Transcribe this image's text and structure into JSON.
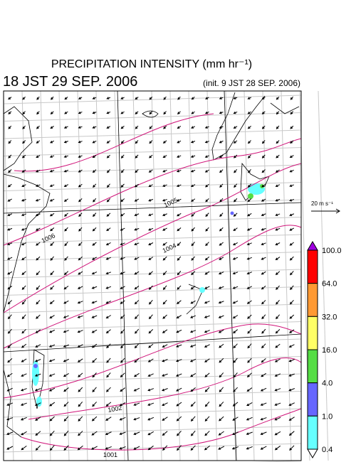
{
  "header": {
    "title": "PRECIPITATION INTENSITY (mm hr⁻¹)",
    "valid_time": "18 JST 29 SEP. 2006",
    "init_time": "(init. 9 JST 28 SEP. 2006)"
  },
  "wind_scale": {
    "label": "20 m s⁻¹"
  },
  "color_bar": {
    "levels": [
      "100.0",
      "64.0",
      "32.0",
      "16.0",
      "4.0",
      "1.0",
      "0.4"
    ],
    "colors": [
      "#a000e0",
      "#ff0000",
      "#ff9933",
      "#ffff66",
      "#55dd44",
      "#6666ff",
      "#66ffff",
      "#ffffff"
    ]
  },
  "isobar_labels": [
    "1006",
    "1005",
    "1004",
    "1002",
    "1001"
  ]
}
